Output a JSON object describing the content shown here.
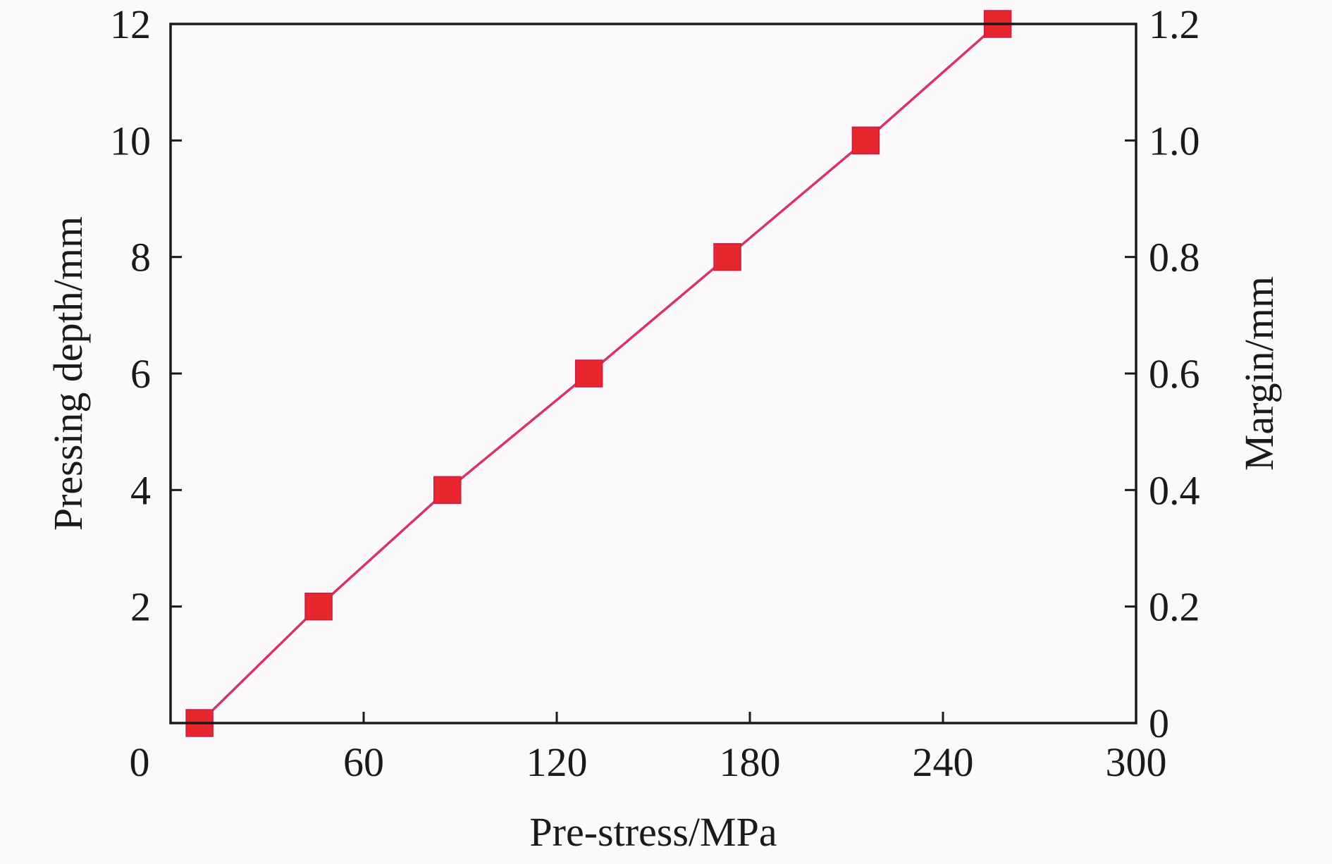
{
  "chart_data": {
    "type": "line",
    "xlabel": "Pre-stress/MPa",
    "ylabel": "Pressing depth/mm",
    "y2label": "Margin/mm",
    "xlim": [
      0,
      300
    ],
    "ylim": [
      0,
      12
    ],
    "y2lim": [
      0,
      1.2
    ],
    "x_ticks": [
      "0",
      "60",
      "120",
      "180",
      "240",
      "300"
    ],
    "y_ticks": [
      "2",
      "4",
      "6",
      "8",
      "10",
      "12"
    ],
    "y2_ticks": [
      "0",
      "0.2",
      "0.4",
      "0.6",
      "0.8",
      "1.0",
      "1.2"
    ],
    "grid": false,
    "series": [
      {
        "marker": "square",
        "line_color": "#d6336b",
        "marker_color": "#e8262e",
        "x": [
          9,
          46,
          86,
          130,
          173,
          216,
          257
        ],
        "y": [
          0,
          2,
          4,
          6,
          8,
          10,
          12
        ]
      }
    ]
  }
}
